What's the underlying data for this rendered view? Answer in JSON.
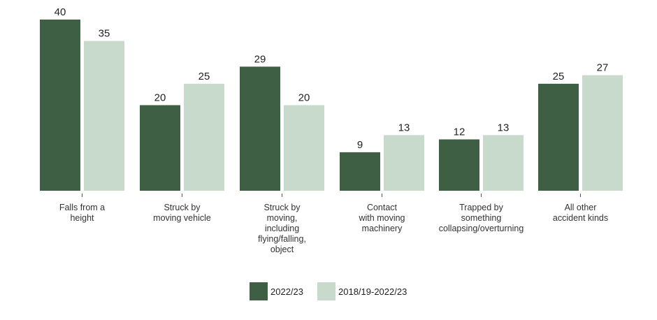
{
  "chart_data": {
    "type": "bar",
    "categories": [
      [
        "Falls from a",
        "height"
      ],
      [
        "Struck by",
        "moving vehicle"
      ],
      [
        "Struck by",
        "moving,",
        "including",
        "flying/falling,",
        "object"
      ],
      [
        "Contact",
        "with moving",
        "machinery"
      ],
      [
        "Trapped by",
        "something",
        "collapsing/overturning"
      ],
      [
        "All other",
        "accident kinds"
      ]
    ],
    "series": [
      {
        "name": "2022/23",
        "color": "#3f5f44",
        "values": [
          40,
          20,
          29,
          9,
          12,
          25
        ]
      },
      {
        "name": "2018/19-2022/23",
        "color": "#c7dacb",
        "values": [
          35,
          25,
          20,
          13,
          13,
          27
        ]
      }
    ],
    "ylim": [
      0,
      40
    ],
    "grid": false,
    "legend_position": "bottom",
    "title": "",
    "xlabel": "",
    "ylabel": ""
  }
}
